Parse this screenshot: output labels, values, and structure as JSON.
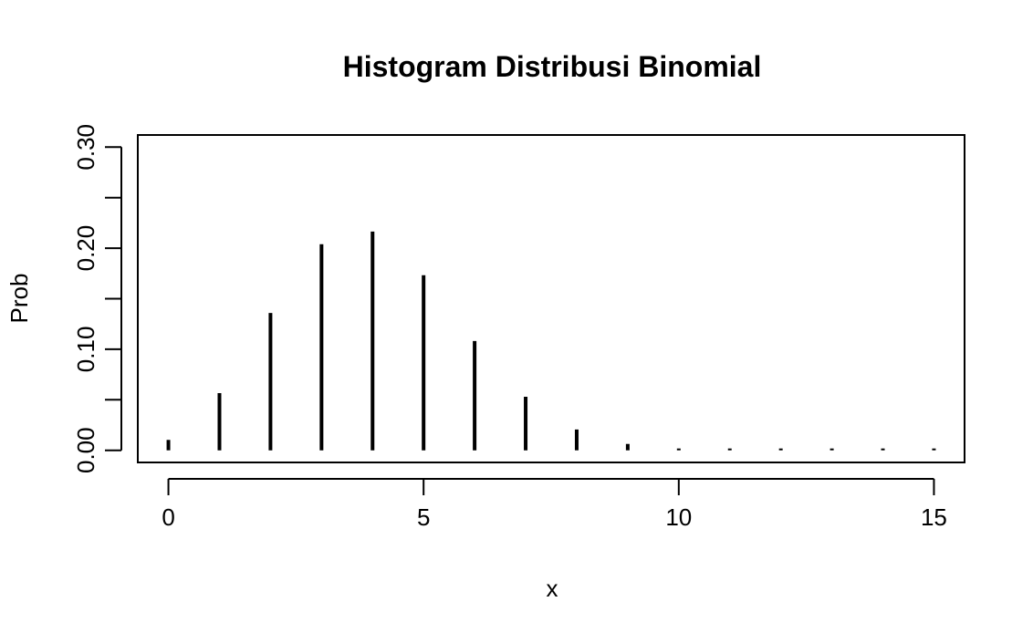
{
  "chart_data": {
    "type": "bar",
    "title": "Histogram Distribusi Binomial",
    "xlabel": "x",
    "ylabel": "Prob",
    "x": [
      0,
      1,
      2,
      3,
      4,
      5,
      6,
      7,
      8,
      9,
      10,
      11,
      12,
      13,
      14,
      15
    ],
    "values": [
      0.0103,
      0.0566,
      0.1359,
      0.2039,
      0.2165,
      0.1732,
      0.1082,
      0.053,
      0.0206,
      0.0063,
      0.0015,
      0.0003,
      0.0,
      0.0,
      0.0,
      0.0
    ],
    "xlim": [
      -0.6,
      15.6
    ],
    "ylim": [
      -0.012,
      0.312
    ],
    "x_ticks": [
      0,
      5,
      10,
      15
    ],
    "x_tick_labels": [
      "0",
      "5",
      "10",
      "15"
    ],
    "y_ticks": [
      0.0,
      0.05,
      0.1,
      0.15,
      0.2,
      0.25,
      0.3
    ],
    "y_tick_labels": [
      "0.00",
      "",
      "0.10",
      "",
      "0.20",
      "",
      "0.30"
    ],
    "grid": false,
    "legend": "none",
    "bar_color": "#000000"
  }
}
